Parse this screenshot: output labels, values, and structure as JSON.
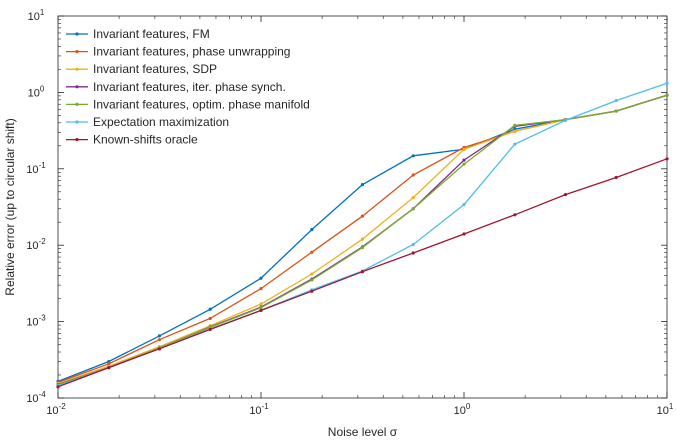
{
  "chart_data": {
    "type": "line",
    "xscale": "log",
    "yscale": "log",
    "xlim": [
      0.01,
      10
    ],
    "ylim": [
      0.0001,
      10
    ],
    "xlabel": "Noise level σ",
    "ylabel": "Relative error (up to circular shift)",
    "x_ticks": [
      {
        "base": "10",
        "exp": "-2"
      },
      {
        "base": "10",
        "exp": "-1"
      },
      {
        "base": "10",
        "exp": "0"
      },
      {
        "base": "10",
        "exp": "1"
      }
    ],
    "y_ticks": [
      {
        "base": "10",
        "exp": "-4"
      },
      {
        "base": "10",
        "exp": "-3"
      },
      {
        "base": "10",
        "exp": "-2"
      },
      {
        "base": "10",
        "exp": "-1"
      },
      {
        "base": "10",
        "exp": "0"
      },
      {
        "base": "10",
        "exp": "1"
      }
    ],
    "legend_position": "top-left",
    "grid": false,
    "x": [
      0.01,
      0.0178,
      0.0316,
      0.0562,
      0.1,
      0.178,
      0.316,
      0.562,
      1.0,
      1.78,
      3.16,
      5.62,
      10.0
    ],
    "series": [
      {
        "name": "Invariant features, FM",
        "color": "#0072BD",
        "values": [
          0.000165,
          0.0003,
          0.00065,
          0.00145,
          0.0037,
          0.016,
          0.062,
          0.148,
          0.18,
          0.33,
          0.44,
          0.57,
          0.92
        ]
      },
      {
        "name": "Invariant features, phase unwrapping",
        "color": "#D95319",
        "values": [
          0.00016,
          0.00028,
          0.00058,
          0.0011,
          0.0027,
          0.0081,
          0.024,
          0.083,
          0.19,
          0.31,
          0.44,
          0.57,
          0.92
        ]
      },
      {
        "name": "Invariant features, SDP",
        "color": "#EDB120",
        "values": [
          0.000155,
          0.00026,
          0.00047,
          0.00088,
          0.0017,
          0.0042,
          0.012,
          0.042,
          0.18,
          0.31,
          0.44,
          0.57,
          0.92
        ]
      },
      {
        "name": "Invariant features, iter. phase synch.",
        "color": "#7E2F8E",
        "values": [
          0.00015,
          0.00025,
          0.00045,
          0.00085,
          0.00155,
          0.0036,
          0.0095,
          0.03,
          0.13,
          0.36,
          0.44,
          0.57,
          0.92
        ]
      },
      {
        "name": "Invariant features, optim. phase manifold",
        "color": "#77AC30",
        "values": [
          0.000148,
          0.00025,
          0.00045,
          0.00084,
          0.00152,
          0.0035,
          0.0093,
          0.03,
          0.115,
          0.37,
          0.44,
          0.57,
          0.92
        ]
      },
      {
        "name": "Expectation maximization",
        "color": "#4DBEEE",
        "values": [
          0.000145,
          0.00025,
          0.00044,
          0.0008,
          0.0014,
          0.0026,
          0.0046,
          0.0102,
          0.034,
          0.21,
          0.43,
          0.78,
          1.32
        ]
      },
      {
        "name": "Known-shifts oracle",
        "color": "#A2142F",
        "values": [
          0.00014,
          0.00025,
          0.00044,
          0.00079,
          0.0014,
          0.0025,
          0.0045,
          0.0079,
          0.014,
          0.025,
          0.046,
          0.077,
          0.135
        ]
      }
    ]
  }
}
